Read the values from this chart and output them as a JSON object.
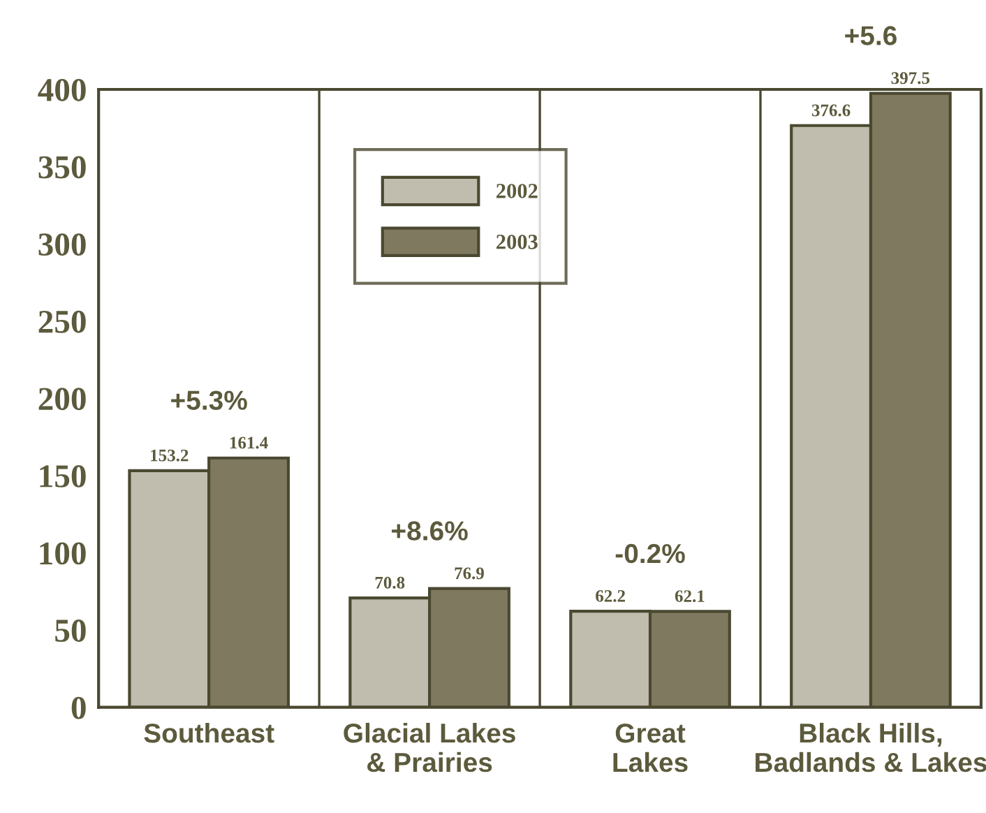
{
  "chart_data": {
    "type": "bar",
    "categories": [
      "Southeast",
      "Glacial Lakes\n& Prairies",
      "Great\nLakes",
      "Black Hills,\nBadlands & Lakes"
    ],
    "series": [
      {
        "name": "2002",
        "color": "#c0bcae",
        "values": [
          153.2,
          70.8,
          62.2,
          376.6
        ]
      },
      {
        "name": "2003",
        "color": "#7f7a5f",
        "values": [
          161.4,
          76.9,
          62.1,
          397.5
        ]
      }
    ],
    "ylim": [
      0,
      400
    ],
    "yticks": [
      0,
      50,
      100,
      150,
      200,
      250,
      300,
      350,
      400
    ],
    "data_labels": true,
    "grid": "x",
    "legend": "top",
    "annotations": [
      "+5.3%",
      "+8.6%",
      "-0.2%",
      "+5.6"
    ]
  }
}
